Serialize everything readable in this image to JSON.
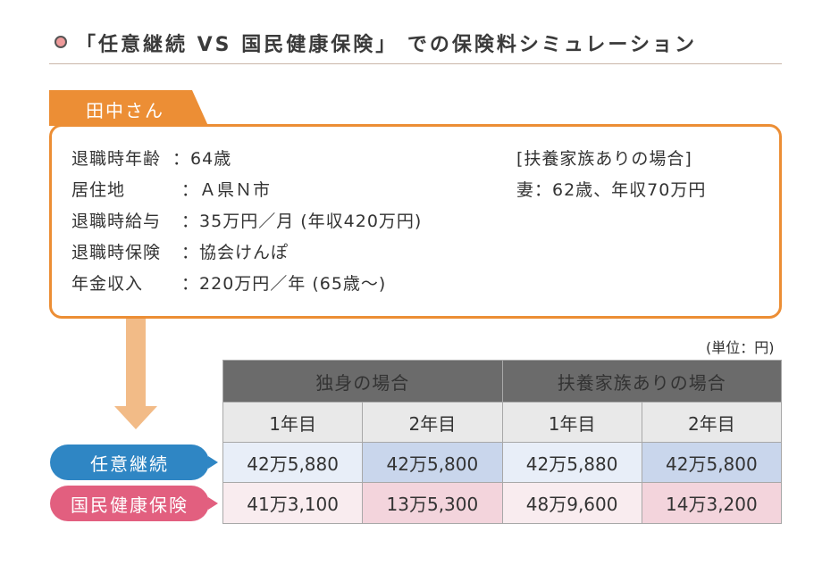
{
  "title": "「任意継続 VS 国民健康保険」 での保険料シミュレーション",
  "person": {
    "name": "田中さん",
    "details": [
      {
        "label": "退職時年齢",
        "sep": "：",
        "value": "64歳"
      },
      {
        "label": "居住地",
        "sep": "：",
        "value": "Ａ県Ｎ市"
      },
      {
        "label": "退職時給与",
        "sep": "：",
        "value": "35万円／月 (年収420万円)"
      },
      {
        "label": "退職時保険",
        "sep": "：",
        "value": "協会けんぽ"
      },
      {
        "label": "年金収入",
        "sep": "：",
        "value": "220万円／年 (65歳〜)"
      }
    ],
    "dependent_heading": "[扶養家族ありの場合]",
    "dependent_detail": "妻：62歳、年収70万円"
  },
  "unit_label": "(単位：円)",
  "table": {
    "groups": [
      "独身の場合",
      "扶養家族ありの場合"
    ],
    "years": [
      "1年目",
      "2年目",
      "1年目",
      "2年目"
    ],
    "rows": [
      {
        "label": "任意継続",
        "values": [
          "42万5,880",
          "42万5,800",
          "42万5,880",
          "42万5,800"
        ]
      },
      {
        "label": "国民健康保険",
        "values": [
          "41万3,100",
          "13万5,300",
          "48万9,600",
          "14万3,200"
        ]
      }
    ]
  },
  "colors": {
    "accent_orange": "#ec8e35",
    "arrow": "#f2bb87",
    "header_gray": "#6b6b6b",
    "blue": "#2f86c4",
    "pink": "#e25f7f"
  }
}
